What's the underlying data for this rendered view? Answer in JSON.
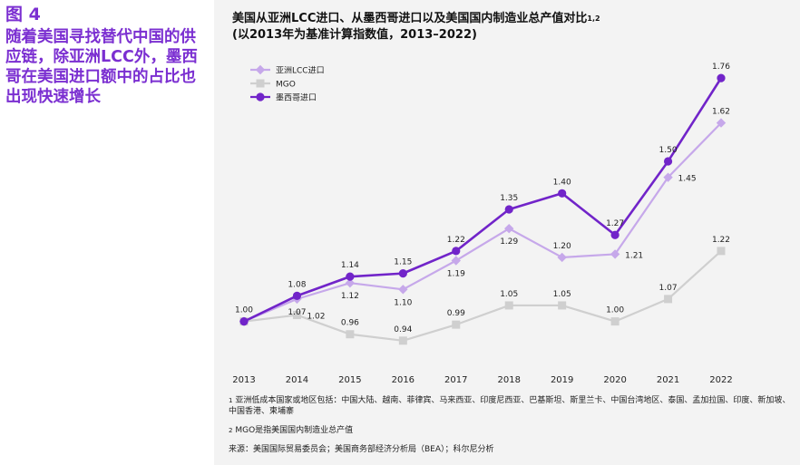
{
  "figure": {
    "label": "图 4",
    "heading": "随着美国寻找替代中国的供应链，除亚洲LCC外，墨西哥在美国进口额中的占比也出现快速增长"
  },
  "chart_title": {
    "line1": "美国从亚洲LCC进口、从墨西哥进口以及美国国内制造业总产值对比",
    "line1_sup": "1,2",
    "line2": "(以2013年为基准计算指数值，2013–2022)"
  },
  "footnotes": {
    "note1_marker": "1",
    "note1": "亚洲低成本国家或地区包括：中国大陆、越南、菲律宾、马来西亚、印度尼西亚、巴基斯坦、斯里兰卡、中国台湾地区、泰国、孟加拉国、印度、新加坡、中国香港、柬埔寨",
    "note2_marker": "2",
    "note2": "MGO是指美国国内制造业总产值",
    "source": "来源：美国国际贸易委员会；美国商务部经济分析局（BEA）；科尔尼分析"
  },
  "chart_data": {
    "type": "line",
    "x": [
      "2013",
      "2014",
      "2015",
      "2016",
      "2017",
      "2018",
      "2019",
      "2020",
      "2021",
      "2022"
    ],
    "ylim": [
      0.88,
      1.8
    ],
    "grid": false,
    "legend_position": "top-left",
    "series": [
      {
        "name": "亚洲LCC进口",
        "color": "#c6a8ea",
        "marker": "diamond",
        "values": [
          1.0,
          1.07,
          1.12,
          1.1,
          1.19,
          1.29,
          1.2,
          1.21,
          1.45,
          1.62
        ]
      },
      {
        "name": "MGO",
        "color": "#cfcfcf",
        "marker": "square",
        "values": [
          1.0,
          1.02,
          0.96,
          0.94,
          0.99,
          1.05,
          1.05,
          1.0,
          1.07,
          1.22
        ]
      },
      {
        "name": "墨西哥进口",
        "color": "#7124c9",
        "marker": "circle",
        "values": [
          1.0,
          1.08,
          1.14,
          1.15,
          1.22,
          1.35,
          1.4,
          1.27,
          1.5,
          1.76
        ]
      }
    ]
  }
}
